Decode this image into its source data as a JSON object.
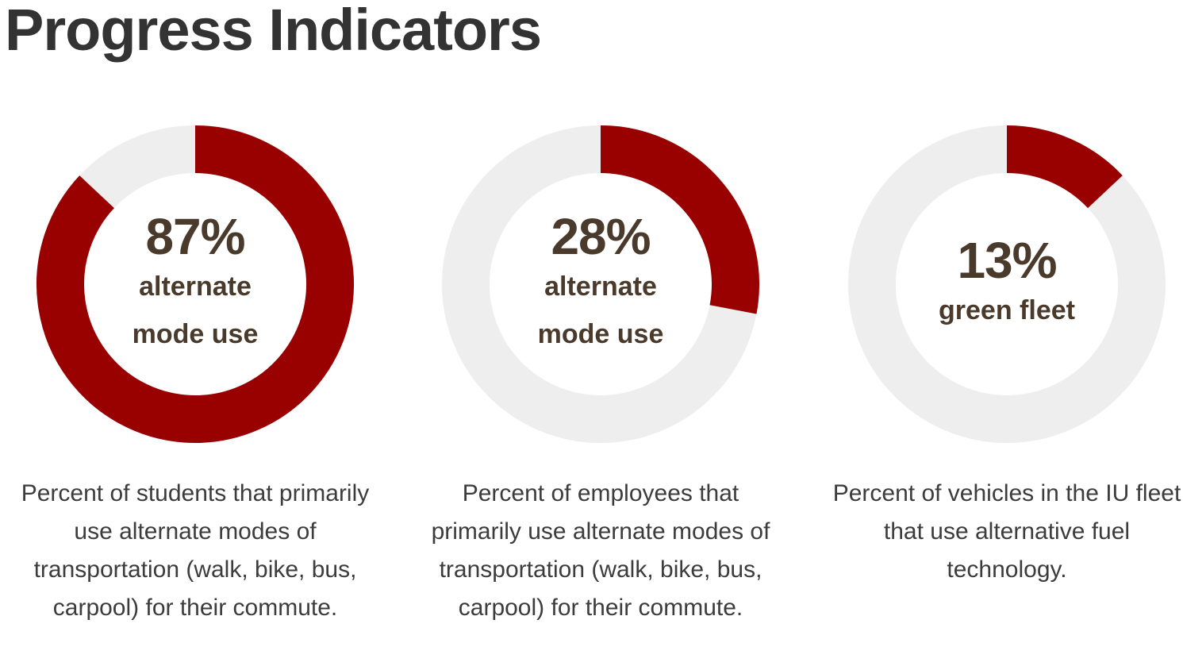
{
  "page": {
    "title": "Progress Indicators"
  },
  "colors": {
    "accent": "#990000",
    "track": "#eeeeee",
    "center_text": "#4a3a2c",
    "description_text": "#3c3c3c",
    "title_text": "#333333"
  },
  "chart_data": [
    {
      "type": "pie",
      "variant": "donut",
      "value": 87,
      "max": 100,
      "value_label": "87%",
      "caption": "alternate mode use",
      "description": "Percent of students that primarily use alternate modes of transportation (walk, bike, bus, carpool) for their commute."
    },
    {
      "type": "pie",
      "variant": "donut",
      "value": 28,
      "max": 100,
      "value_label": "28%",
      "caption": "alternate mode use",
      "description": "Percent of employees that primarily use alternate modes of transportation (walk, bike, bus, carpool) for their commute."
    },
    {
      "type": "pie",
      "variant": "donut",
      "value": 13,
      "max": 100,
      "value_label": "13%",
      "caption": "green fleet",
      "description": "Percent of vehicles in the IU fleet that use alternative fuel technology."
    }
  ]
}
